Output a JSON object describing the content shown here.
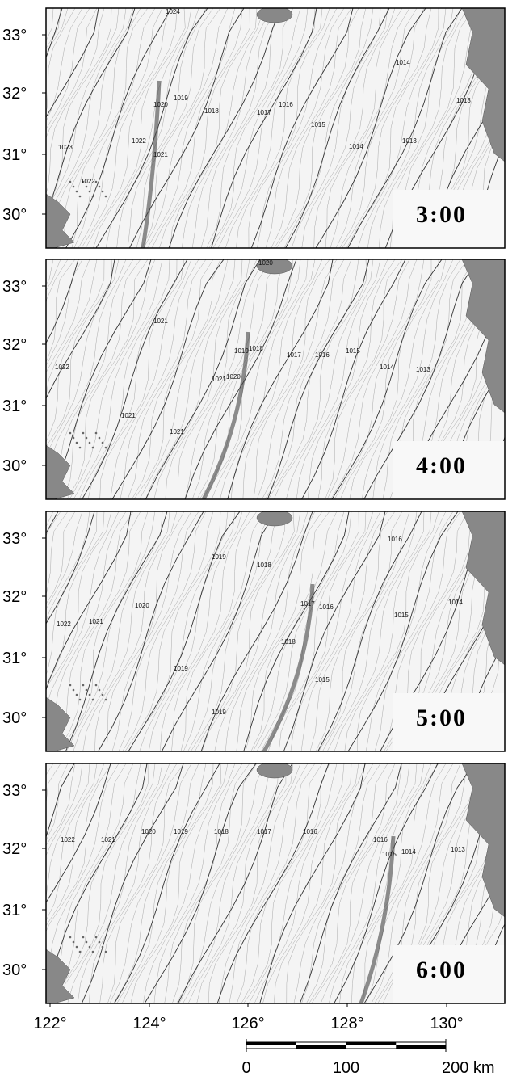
{
  "panels": [
    {
      "time": "3:00",
      "contour_labels": [
        "1024",
        "1020",
        "1019",
        "1018",
        "1017",
        "1016",
        "1015",
        "1014",
        "1013",
        "1014",
        "1013",
        "1022",
        "1021",
        "1023",
        "1022"
      ]
    },
    {
      "time": "4:00",
      "contour_labels": [
        "1020",
        "1021",
        "1019",
        "1018",
        "1017",
        "1016",
        "1015",
        "1014",
        "1013",
        "1022",
        "1021",
        "1021",
        "1021",
        "1020"
      ]
    },
    {
      "time": "5:00",
      "contour_labels": [
        "1016",
        "1019",
        "1018",
        "1020",
        "1017",
        "1016",
        "1015",
        "1014",
        "1022",
        "1021",
        "1018",
        "1019",
        "1015",
        "1019"
      ]
    },
    {
      "time": "6:00",
      "contour_labels": [
        "1022",
        "1021",
        "1020",
        "1019",
        "1018",
        "1017",
        "1016",
        "1016",
        "1015",
        "1014",
        "1013"
      ]
    }
  ],
  "lat_labels": [
    "33°",
    "32°",
    "31°",
    "30°"
  ],
  "lon_labels": [
    "122°",
    "124°",
    "126°",
    "128°",
    "130°"
  ],
  "scale_bar": {
    "labels": [
      "0",
      "100",
      "200 km"
    ]
  }
}
